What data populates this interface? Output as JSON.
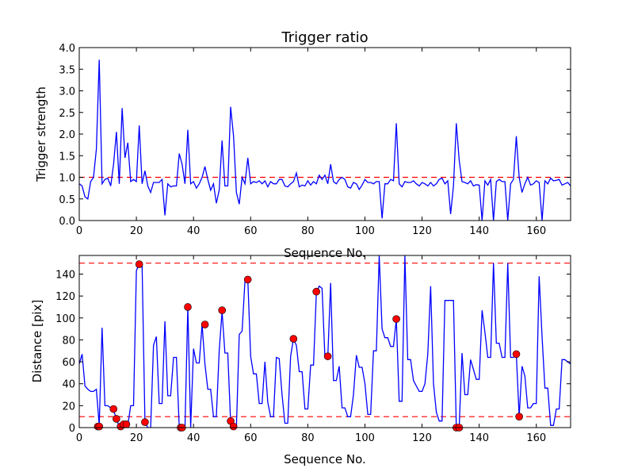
{
  "chart_data": [
    {
      "type": "line",
      "title": "Trigger ratio",
      "xlabel": "Sequence No.",
      "ylabel": "Trigger strength",
      "xlim": [
        0,
        172
      ],
      "ylim": [
        0,
        4.0
      ],
      "xticks": [
        "0",
        "20",
        "40",
        "60",
        "80",
        "100",
        "120",
        "140",
        "160"
      ],
      "yticks": [
        "0.0",
        "0.5",
        "1.0",
        "1.5",
        "2.0",
        "2.5",
        "3.0",
        "3.5",
        "4.0"
      ],
      "line_color": "#0000ff",
      "threshold_color": "#ff0000",
      "thresholds": [
        1.0
      ],
      "series": [
        {
          "name": "trigger strength",
          "values": [
            0.85,
            0.8,
            0.55,
            0.5,
            0.9,
            1.0,
            1.65,
            3.72,
            0.85,
            0.95,
            0.98,
            0.8,
            1.3,
            2.05,
            0.85,
            2.6,
            1.45,
            1.8,
            0.9,
            0.95,
            0.9,
            2.2,
            0.85,
            1.15,
            0.8,
            0.65,
            0.88,
            0.88,
            0.88,
            0.95,
            0.12,
            0.85,
            0.78,
            0.8,
            0.8,
            1.55,
            1.3,
            0.85,
            2.1,
            0.85,
            0.9,
            0.75,
            0.85,
            1.0,
            1.25,
            0.95,
            0.7,
            0.85,
            0.4,
            0.7,
            1.85,
            0.8,
            0.8,
            2.63,
            1.95,
            0.65,
            0.38,
            1.0,
            0.85,
            1.45,
            0.85,
            0.9,
            0.88,
            0.92,
            0.85,
            0.92,
            0.78,
            0.9,
            0.85,
            0.85,
            0.95,
            0.95,
            0.8,
            0.78,
            0.85,
            0.9,
            1.1,
            0.78,
            0.82,
            0.8,
            0.92,
            0.82,
            0.9,
            0.85,
            1.05,
            0.95,
            1.05,
            0.85,
            1.3,
            0.9,
            0.85,
            0.95,
            1.0,
            0.95,
            0.78,
            0.75,
            0.88,
            0.85,
            0.72,
            0.82,
            0.95,
            0.88,
            0.88,
            0.85,
            0.9,
            0.9,
            0.05,
            0.85,
            0.85,
            0.95,
            0.92,
            2.25,
            0.85,
            0.78,
            0.9,
            0.88,
            0.88,
            0.92,
            0.85,
            0.8,
            0.88,
            0.85,
            0.8,
            0.88,
            0.8,
            0.85,
            0.95,
            0.98,
            0.85,
            0.92,
            0.15,
            0.8,
            2.25,
            1.4,
            0.9,
            0.88,
            0.85,
            0.92,
            0.8,
            0.83,
            0.82,
            0.0,
            0.92,
            0.82,
            0.95,
            0.0,
            0.9,
            0.95,
            0.9,
            0.9,
            0.0,
            0.85,
            0.95,
            1.95,
            1.0,
            0.65,
            0.85,
            1.0,
            0.82,
            0.85,
            0.92,
            0.88,
            0.0,
            0.92,
            0.85,
            0.98,
            0.92,
            0.93,
            0.95,
            0.82,
            0.85,
            0.88,
            0.8
          ]
        }
      ]
    },
    {
      "type": "line",
      "title": "",
      "xlabel": "Sequence No.",
      "ylabel": "Distance [pix]",
      "xlim": [
        0,
        172
      ],
      "ylim": [
        0,
        157
      ],
      "xticks": [
        "0",
        "20",
        "40",
        "60",
        "80",
        "100",
        "120",
        "140",
        "160"
      ],
      "yticks": [
        "0",
        "20",
        "40",
        "60",
        "80",
        "100",
        "120",
        "140"
      ],
      "line_color": "#0000ff",
      "threshold_color": "#ff0000",
      "marker_color": "#ff0000",
      "thresholds": [
        10,
        150
      ],
      "series": [
        {
          "name": "distance",
          "values": [
            58,
            67,
            38,
            35,
            33,
            33,
            35,
            2,
            91,
            20,
            20,
            18,
            15,
            9,
            0,
            0,
            0,
            2,
            20,
            20,
            143,
            150,
            148,
            5,
            0,
            0,
            75,
            83,
            22,
            22,
            97,
            29,
            29,
            64,
            64,
            0,
            0,
            0,
            110,
            0,
            72,
            59,
            59,
            94,
            58,
            35,
            35,
            10,
            10,
            70,
            106,
            68,
            68,
            5,
            0,
            0,
            85,
            88,
            134,
            135,
            65,
            49,
            49,
            22,
            22,
            60,
            23,
            10,
            10,
            64,
            63,
            30,
            4,
            4,
            65,
            81,
            75,
            51,
            51,
            17,
            17,
            57,
            57,
            123,
            129,
            127,
            64,
            64,
            132,
            43,
            43,
            56,
            18,
            18,
            10,
            10,
            30,
            66,
            55,
            55,
            40,
            12,
            12,
            70,
            70,
            157,
            90,
            82,
            82,
            74,
            74,
            99,
            24,
            24,
            157,
            62,
            62,
            43,
            38,
            33,
            33,
            40,
            67,
            129,
            40,
            14,
            6,
            6,
            116,
            116,
            116,
            116,
            0,
            0,
            68,
            30,
            30,
            62,
            53,
            44,
            44,
            107,
            87,
            64,
            64,
            150,
            77,
            77,
            64,
            64,
            150,
            64,
            64,
            67,
            10,
            56,
            47,
            18,
            18,
            22,
            22,
            138,
            83,
            36,
            36,
            2,
            2,
            17,
            17,
            62,
            62,
            60,
            58
          ]
        }
      ],
      "markers": [
        [
          6.5,
          1
        ],
        [
          7,
          1
        ],
        [
          12,
          17
        ],
        [
          13,
          8
        ],
        [
          14.5,
          1
        ],
        [
          15.5,
          3
        ],
        [
          16.5,
          3
        ],
        [
          21,
          149
        ],
        [
          23,
          5
        ],
        [
          35.5,
          0
        ],
        [
          36,
          0
        ],
        [
          38,
          110
        ],
        [
          44,
          94
        ],
        [
          50,
          107
        ],
        [
          53,
          6
        ],
        [
          54,
          1
        ],
        [
          59,
          135
        ],
        [
          75,
          81
        ],
        [
          83,
          124
        ],
        [
          87,
          65
        ],
        [
          111,
          99
        ],
        [
          132,
          0
        ],
        [
          133,
          0
        ],
        [
          153,
          67
        ],
        [
          154,
          10
        ]
      ]
    }
  ]
}
